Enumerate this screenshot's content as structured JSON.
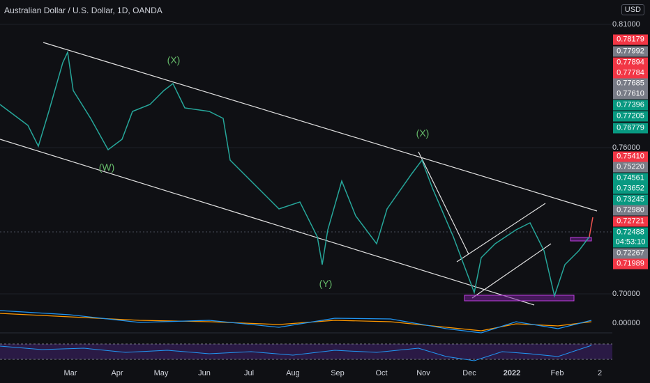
{
  "header": {
    "title": "Australian Dollar / U.S. Dollar, 1D, OANDA",
    "currency": "USD"
  },
  "price_scale": {
    "ticks": [
      "0.81000",
      "0.76000",
      "0.70000",
      "0.00000"
    ]
  },
  "price_labels": [
    "0.78179",
    "0.77992",
    "0.77894",
    "0.77784",
    "0.77685",
    "0.77610",
    "0.77396",
    "0.77205",
    "0.76779",
    "0.75410",
    "0.75220",
    "0.74561",
    "0.73652",
    "0.73245",
    "0.72980",
    "0.72721",
    "0.72488",
    "04:53:10",
    "0.72267",
    "0.71989"
  ],
  "annotations": [
    "(X)",
    "(W)",
    "(X)",
    "(Y)"
  ],
  "time_axis": [
    "Mar",
    "Apr",
    "May",
    "Jun",
    "Jul",
    "Aug",
    "Sep",
    "Oct",
    "Nov",
    "Dec",
    "2022",
    "Feb",
    "2"
  ]
}
